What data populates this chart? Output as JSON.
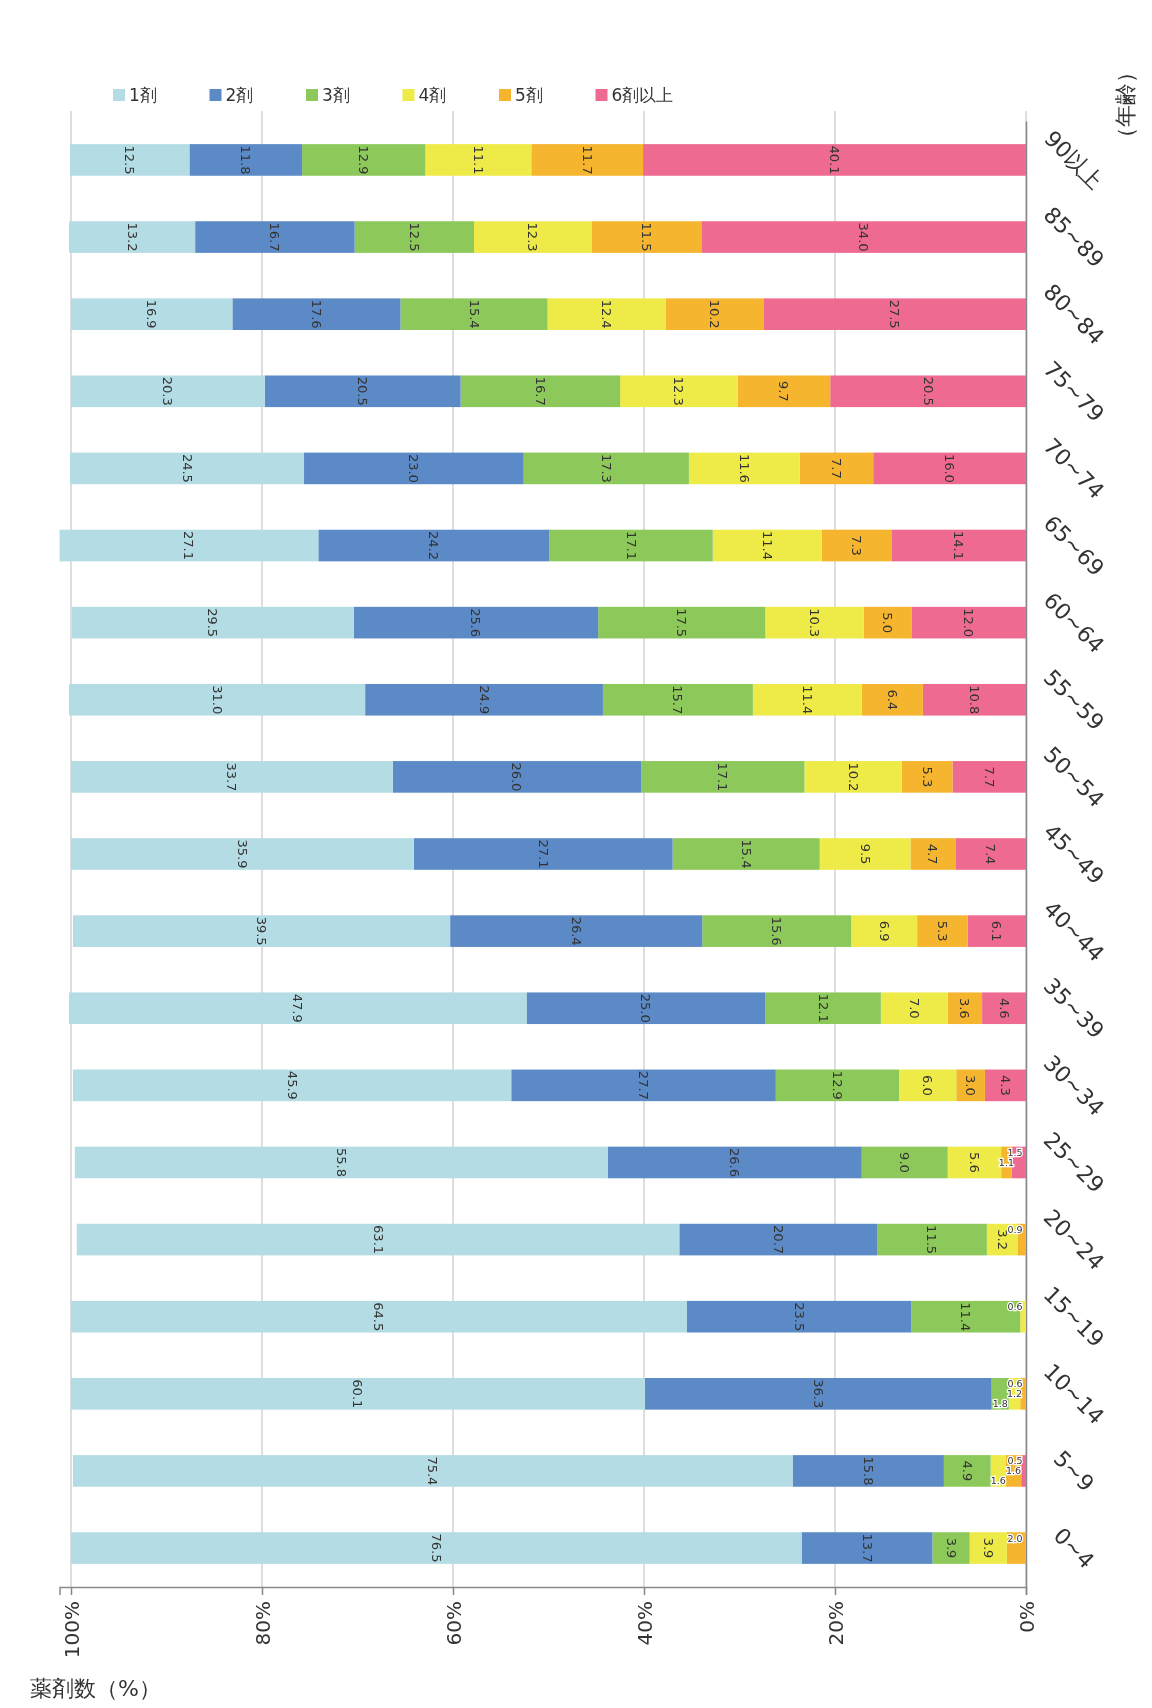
{
  "chart_data": {
    "type": "bar",
    "stacked": true,
    "orientation": "horizontal",
    "xlabel": "薬剤数（%）",
    "ylabel": "（年齢）",
    "categories": [
      "90以上",
      "85~89",
      "80~84",
      "75~79",
      "70~74",
      "65~69",
      "60~64",
      "55~59",
      "50~54",
      "45~49",
      "40~44",
      "35~39",
      "30~34",
      "25~29",
      "20~24",
      "15~19",
      "10~14",
      "5~9",
      "0~4"
    ],
    "series": [
      {
        "name": "6剤以上",
        "color": "#ee6a90",
        "values": [
          40.1,
          34.0,
          27.5,
          20.5,
          16.0,
          14.1,
          12.0,
          10.8,
          7.7,
          7.4,
          6.1,
          4.6,
          4.3,
          1.5,
          null,
          null,
          null,
          0.5,
          null
        ],
        "value_labels": [
          "40.1",
          "34.0",
          "27.5",
          "20.5",
          "16.0",
          "14.1",
          "12.0",
          "10.8",
          "7.7",
          "7.4",
          "6.1",
          "4.6",
          "4.3",
          "1.5",
          null,
          null,
          null,
          "0.5",
          null
        ]
      },
      {
        "name": "5剤",
        "color": "#f5b52e",
        "values": [
          11.7,
          11.5,
          10.2,
          9.7,
          7.7,
          7.3,
          5.0,
          6.4,
          5.3,
          4.7,
          5.3,
          3.6,
          3.0,
          1.1,
          0.9,
          null,
          0.6,
          1.6,
          2.0
        ],
        "value_labels": [
          "11.7",
          "11.5",
          "10.2",
          "9.7",
          "7.7",
          "7.3",
          "5.0",
          "6.4",
          "5.3",
          "4.7",
          "5.3",
          "3.6",
          "3.0",
          "1.1",
          "0.9",
          null,
          "0.6",
          "1.6",
          "2.0"
        ]
      },
      {
        "name": "4剤",
        "color": "#eeea48",
        "values": [
          11.1,
          12.3,
          12.4,
          12.3,
          11.6,
          11.4,
          10.3,
          11.4,
          10.2,
          9.5,
          6.9,
          7.0,
          6.0,
          5.6,
          3.2,
          0.6,
          1.2,
          1.6,
          3.9
        ],
        "value_labels": [
          "11.1",
          "12.3",
          "12.4",
          "12.3",
          "11.6",
          "11.4",
          "10.3",
          "11.4",
          "10.2",
          "9.5",
          "6.9",
          "7.0",
          "6.0",
          "5.6",
          "3.2",
          "0.6",
          "1.2",
          "1.6",
          "3.9"
        ]
      },
      {
        "name": "3剤",
        "color": "#8cc85a",
        "values": [
          12.9,
          12.5,
          15.4,
          16.7,
          17.3,
          17.1,
          17.5,
          15.7,
          17.1,
          15.4,
          15.6,
          12.1,
          12.9,
          9.0,
          11.5,
          11.4,
          1.8,
          4.9,
          3.9
        ],
        "value_labels": [
          "12.9",
          "12.5",
          "15.4",
          "16.7",
          "17.3",
          "17.1",
          "17.5",
          "15.7",
          "17.1",
          "15.4",
          "15.6",
          "12.1",
          "12.9",
          "9.0",
          "11.5",
          "11.4",
          "1.8",
          "4.9",
          "3.9"
        ]
      },
      {
        "name": "2剤",
        "color": "#5b8ac6",
        "values": [
          11.8,
          16.7,
          17.6,
          20.5,
          23.0,
          24.2,
          25.6,
          24.9,
          26.0,
          27.1,
          26.4,
          25.0,
          27.7,
          26.6,
          20.7,
          23.5,
          36.3,
          15.8,
          13.7
        ],
        "value_labels": [
          "11.8",
          "16.7",
          "17.6",
          "20.5",
          "23.0",
          "24.2",
          "25.6",
          "24.9",
          "26.0",
          "27.1",
          "26.4",
          "25.0",
          "27.7",
          "26.6",
          "20.7",
          "23.5",
          "36.3",
          "15.8",
          "13.7"
        ]
      },
      {
        "name": "1剤",
        "color": "#b4dce4",
        "values": [
          12.5,
          13.2,
          16.9,
          20.3,
          24.5,
          27.1,
          29.5,
          31.0,
          33.7,
          35.9,
          39.5,
          47.9,
          45.9,
          55.8,
          63.1,
          64.5,
          60.1,
          75.4,
          76.5
        ],
        "value_labels": [
          "12.5",
          "13.2",
          "16.9",
          "20.3",
          "24.5",
          "27.1",
          "29.5",
          "31.0",
          "33.7",
          "35.9",
          "39.5",
          "47.9",
          "45.9",
          "55.8",
          "63.1",
          "64.5",
          "60.1",
          "75.4",
          "76.5"
        ]
      }
    ],
    "xlim": [
      101.2,
      0
    ],
    "xticks": [
      {
        "value": 100,
        "label": "100%"
      },
      {
        "value": 80,
        "label": "80%"
      },
      {
        "value": 60,
        "label": "60%"
      },
      {
        "value": 40,
        "label": "40%"
      },
      {
        "value": 20,
        "label": "20%"
      },
      {
        "value": 0,
        "label": "0%"
      }
    ],
    "grid": "x",
    "legend": "top"
  }
}
